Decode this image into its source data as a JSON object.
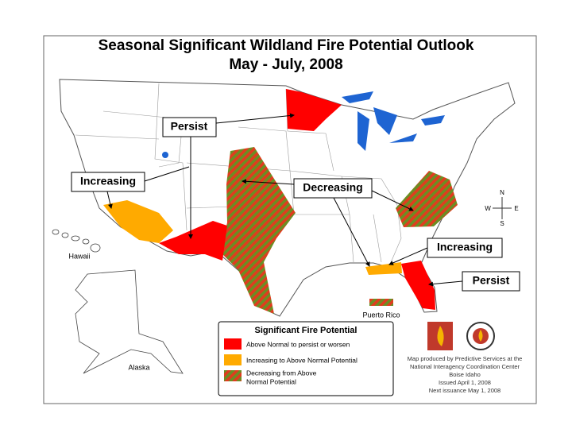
{
  "header": {
    "title": "Seasonal Significant Wildland Fire Potential Outlook",
    "subtitle": "May - July, 2008"
  },
  "callouts": [
    "Persist",
    "Increasing",
    "Decreasing",
    "Increasing",
    "Persist"
  ],
  "map_labels": {
    "hawaii": "Hawaii",
    "alaska": "Alaska",
    "puerto_rico": "Puerto Rico"
  },
  "compass": {
    "n": "N",
    "s": "S",
    "e": "E",
    "w": "W"
  },
  "legend": {
    "title": "Significant Fire Potential",
    "items": [
      [
        "Above Normal to persist or worsen"
      ],
      [
        "Increasing to Above Normal Potential"
      ],
      [
        "Decreasing from Above",
        "Normal Potential"
      ]
    ]
  },
  "credits": [
    "Map produced by Predictive Services at the",
    "National Interagency Coordination Center",
    "Boise Idaho",
    "Issued April 1, 2008",
    "Next issuance May 1, 2008"
  ]
}
